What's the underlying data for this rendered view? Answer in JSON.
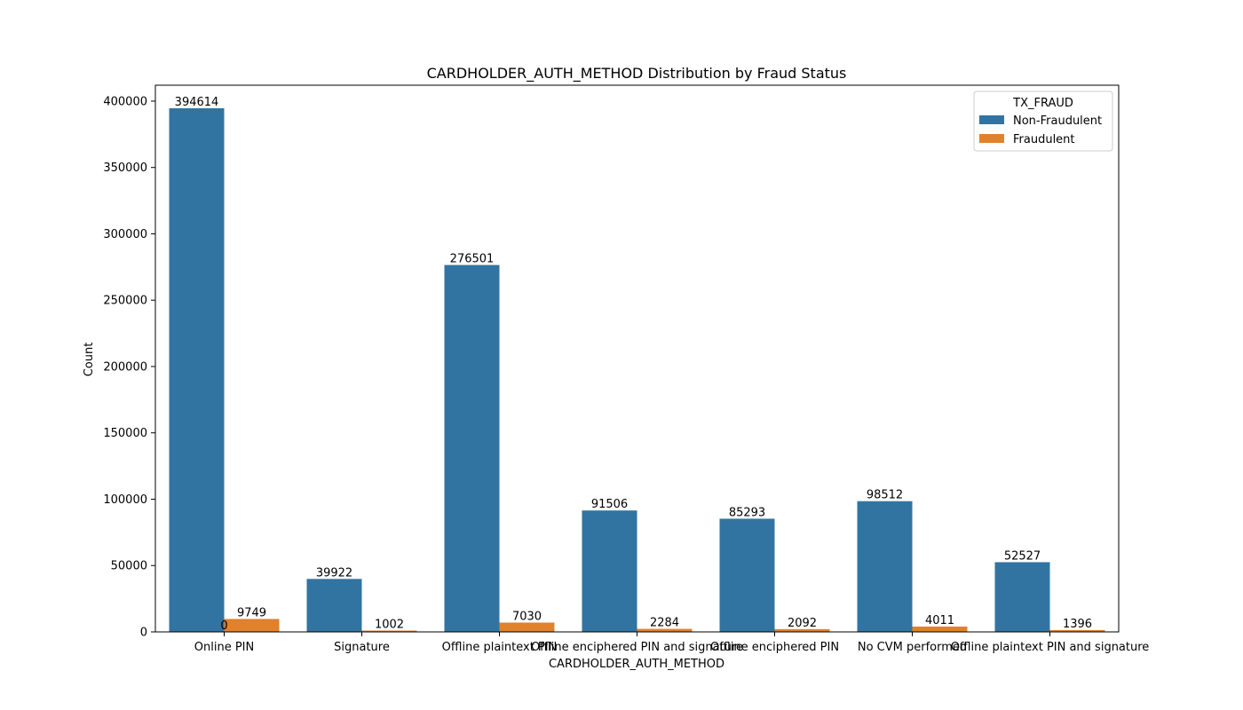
{
  "chart_data": {
    "type": "bar",
    "title": "CARDHOLDER_AUTH_METHOD Distribution by Fraud Status",
    "xlabel": "CARDHOLDER_AUTH_METHOD",
    "ylabel": "Count",
    "ylim": [
      0,
      412000
    ],
    "yticks": [
      0,
      50000,
      100000,
      150000,
      200000,
      250000,
      300000,
      350000,
      400000
    ],
    "categories": [
      "Online PIN",
      "Signature",
      "Offline plaintext PIN",
      "Offline enciphered PIN and signature",
      "Offline enciphered PIN",
      "No CVM performed",
      "Offline plaintext PIN and signature"
    ],
    "series": [
      {
        "name": "Non-Fraudulent",
        "color": "#3274a1",
        "values": [
          394614,
          39922,
          276501,
          91506,
          85293,
          98512,
          52527
        ]
      },
      {
        "name": "Fraudulent",
        "color": "#e1812c",
        "values": [
          9749,
          1002,
          7030,
          2284,
          2092,
          4011,
          1396
        ]
      }
    ],
    "extra_annotations": [
      {
        "text": "0"
      }
    ],
    "legend": {
      "title": "TX_FRAUD",
      "placement": "top-right"
    },
    "grid": false
  }
}
